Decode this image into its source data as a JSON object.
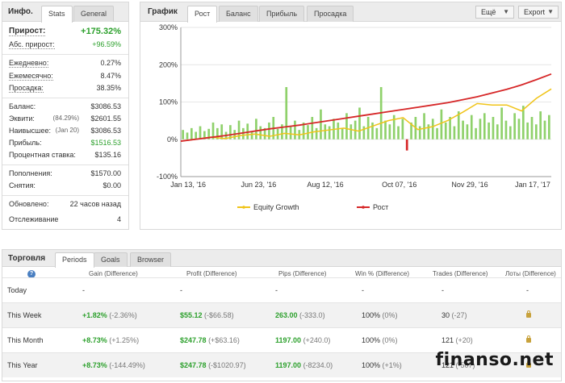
{
  "info": {
    "title": "Инфо.",
    "tabs": [
      "Stats",
      "General"
    ],
    "growth_label": "Прирост:",
    "growth_value": "+175.32%",
    "abs_growth_label": "Абс. прирост:",
    "abs_growth_value": "+96.59%",
    "daily_label": "Ежедневно:",
    "daily_value": "0.27%",
    "monthly_label": "Ежемесячно:",
    "monthly_value": "8.47%",
    "drawdown_label": "Просадка:",
    "drawdown_value": "38.35%",
    "balance_label": "Баланс:",
    "balance_value": "$3086.53",
    "equity_label": "Эквити:",
    "equity_pct": "(84.29%)",
    "equity_value": "$2601.55",
    "highest_label": "Наивысшее:",
    "highest_date": "(Jan 20)",
    "highest_value": "$3086.53",
    "profit_label": "Прибыль:",
    "profit_value": "$1516.53",
    "interest_label": "Процентная ставка:",
    "interest_value": "$135.16",
    "deposits_label": "Пополнения:",
    "deposits_value": "$1570.00",
    "withdrawals_label": "Снятия:",
    "withdrawals_value": "$0.00",
    "updated_label": "Обновлено:",
    "updated_value": "22 часов назад",
    "tracking_label": "Отслеживание",
    "tracking_value": "4"
  },
  "chart_panel": {
    "title": "График",
    "tabs": [
      "Рост",
      "Баланс",
      "Прибыль",
      "Просадка"
    ],
    "more_label": "Ещё",
    "export_label": "Export"
  },
  "chart_data": {
    "type": "line",
    "y_ticks": [
      "300%",
      "200%",
      "100%",
      "0%",
      "-100%"
    ],
    "ylim": [
      -100,
      300
    ],
    "x_ticks": [
      "Jan 13, '16",
      "Jun 23, '16",
      "Aug 12, '16",
      "Oct 07, '16",
      "Nov 29, '16",
      "Jan 17, '17"
    ],
    "grid": true,
    "legend_position": "bottom",
    "series": [
      {
        "name": "Equity Growth",
        "color": "#f0c419",
        "x": [
          0,
          4,
          8,
          12,
          16,
          20,
          24,
          28,
          32,
          36,
          40,
          44,
          48,
          52,
          56,
          60,
          64,
          68,
          72,
          76,
          80,
          84,
          88,
          92,
          96,
          100
        ],
        "values": [
          -5,
          0,
          6,
          2,
          10,
          14,
          8,
          16,
          12,
          20,
          25,
          30,
          22,
          36,
          50,
          58,
          26,
          34,
          50,
          72,
          96,
          92,
          92,
          76,
          110,
          135
        ]
      },
      {
        "name": "Рост",
        "color": "#d62728",
        "x": [
          0,
          4,
          8,
          12,
          16,
          20,
          24,
          28,
          32,
          36,
          40,
          44,
          48,
          52,
          56,
          60,
          64,
          68,
          72,
          76,
          80,
          84,
          88,
          92,
          96,
          100
        ],
        "values": [
          -5,
          0,
          5,
          10,
          16,
          22,
          28,
          33,
          38,
          44,
          50,
          56,
          62,
          68,
          74,
          80,
          86,
          92,
          98,
          106,
          114,
          124,
          134,
          146,
          160,
          175
        ]
      }
    ],
    "bars": {
      "color": "#8fd16b",
      "values": [
        25,
        18,
        30,
        20,
        35,
        22,
        28,
        45,
        30,
        40,
        20,
        38,
        25,
        50,
        30,
        42,
        22,
        55,
        35,
        30,
        45,
        60,
        28,
        40,
        140,
        35,
        50,
        25,
        45,
        38,
        60,
        30,
        80,
        40,
        35,
        55,
        45,
        30,
        70,
        40,
        50,
        85,
        35,
        60,
        45,
        30,
        140,
        50,
        40,
        65,
        35,
        55,
        -30,
        45,
        60,
        35,
        70,
        40,
        55,
        30,
        80,
        45,
        60,
        35,
        75,
        50,
        40,
        65,
        30,
        55,
        70,
        45,
        60,
        40,
        85,
        50,
        35,
        70,
        55,
        90,
        45,
        60,
        40,
        75,
        50,
        65
      ]
    }
  },
  "trading": {
    "title": "Торговля",
    "tabs": [
      "Periods",
      "Goals",
      "Browser"
    ],
    "help_icon": "?",
    "headers": [
      "Gain (Difference)",
      "Profit (Difference)",
      "Pips (Difference)",
      "Win % (Difference)",
      "Trades (Difference)",
      "Лоты (Difference)"
    ],
    "rows": [
      {
        "period": "Today",
        "gain": "-",
        "gain_diff": "",
        "profit": "-",
        "profit_diff": "",
        "pips": "-",
        "pips_diff": "",
        "win": "-",
        "win_diff": "",
        "trades": "-",
        "trades_diff": "",
        "lots": "-"
      },
      {
        "period": "This Week",
        "gain": "+1.82%",
        "gain_diff": "(-2.36%)",
        "profit": "$55.12",
        "profit_diff": "(-$66.58)",
        "pips": "263.00",
        "pips_diff": "(-333.0)",
        "win": "100%",
        "win_diff": "(0%)",
        "trades": "30",
        "trades_diff": "(-27)",
        "lots": ""
      },
      {
        "period": "This Month",
        "gain": "+8.73%",
        "gain_diff": "(+1.25%)",
        "profit": "$247.78",
        "profit_diff": "(+$63.16)",
        "pips": "1197.00",
        "pips_diff": "(+240.0)",
        "win": "100%",
        "win_diff": "(0%)",
        "trades": "121",
        "trades_diff": "(+20)",
        "lots": ""
      },
      {
        "period": "This Year",
        "gain": "+8.73%",
        "gain_diff": "(-144.49%)",
        "profit": "$247.78",
        "profit_diff": "(-$1020.97)",
        "pips": "1197.00",
        "pips_diff": "(-8234.0)",
        "win": "100%",
        "win_diff": "(+1%)",
        "trades": "121",
        "trades_diff": "(-507)",
        "lots": ""
      }
    ]
  },
  "watermark": "finanso.net"
}
